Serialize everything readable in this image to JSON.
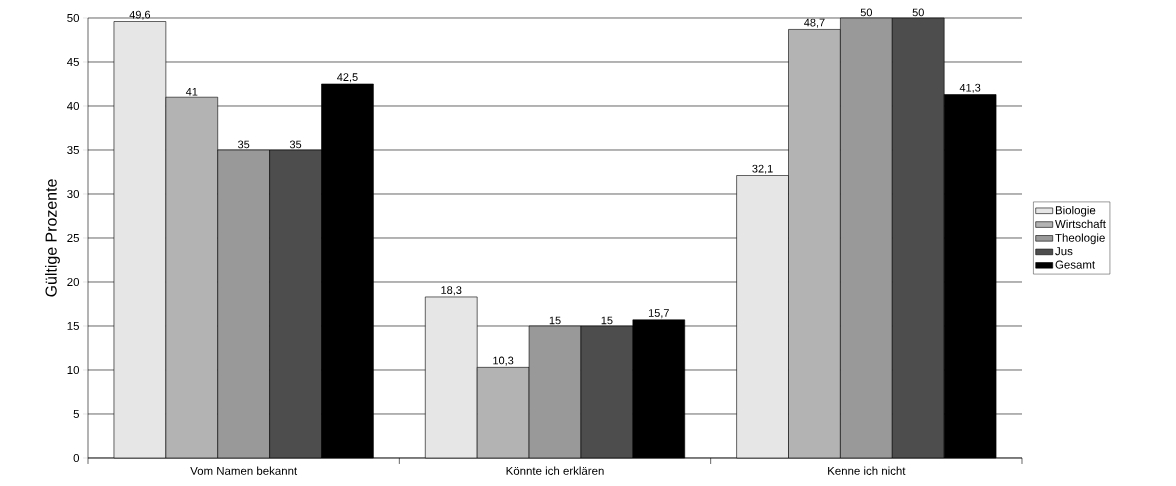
{
  "chart_data": {
    "type": "bar",
    "ylabel": "Gültige Prozente",
    "categories": [
      "Vom Namen bekannt",
      "Könnte ich erklären",
      "Kenne ich nicht"
    ],
    "series": [
      {
        "name": "Biologie",
        "color": "#e6e6e6",
        "values": [
          49.6,
          18.3,
          32.1
        ],
        "value_labels": [
          "49,6",
          "18,3",
          "32,1"
        ]
      },
      {
        "name": "Wirtschaft",
        "color": "#b3b3b3",
        "values": [
          41,
          10.3,
          48.7
        ],
        "value_labels": [
          "41",
          "10,3",
          "48,7"
        ]
      },
      {
        "name": "Theologie",
        "color": "#999999",
        "values": [
          35,
          15,
          50
        ],
        "value_labels": [
          "35",
          "15",
          "50"
        ]
      },
      {
        "name": "Jus",
        "color": "#4d4d4d",
        "values": [
          35,
          15,
          50
        ],
        "value_labels": [
          "35",
          "15",
          "50"
        ]
      },
      {
        "name": "Gesamt",
        "color": "#000000",
        "values": [
          42.5,
          15.7,
          41.3
        ],
        "value_labels": [
          "42,5",
          "15,7",
          "41,3"
        ]
      }
    ],
    "ylim": [
      0,
      50
    ],
    "yticks": [
      0,
      5,
      10,
      15,
      20,
      25,
      30,
      35,
      40,
      45,
      50
    ],
    "grid": "y",
    "legend": "right"
  }
}
